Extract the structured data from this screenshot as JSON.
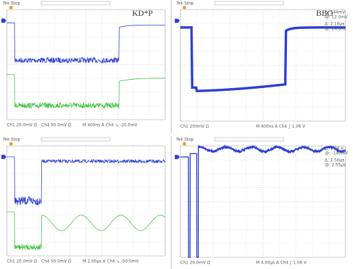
{
  "panels": [
    {
      "header": "Tek Stop",
      "label": "KD*P",
      "readouts": [],
      "footer": [
        "Ch1  20.0mV Ω",
        "Ch4  50.0mV Ω",
        "M 400ns  A  Ch4  ↘ -20.0mV"
      ]
    },
    {
      "header": "Tek Stop",
      "label": "BBO",
      "readouts": [
        "Δ: 544mV",
        "@: 12.0mV",
        "Δ: 2.10μs",
        "@: 24.8ns"
      ],
      "footer": [
        "Ch1  200mV Ω",
        "M 400ns  A  Ch4  ∫ 1.06 V"
      ]
    },
    {
      "header": "Tek Stop",
      "label": "",
      "readouts": [],
      "footer": [
        "Ch1  20.0mV Ω",
        "Ch4  50.0mV Ω",
        "M 2.00μs  A  Ch4  ↘ -50.0mV"
      ]
    },
    {
      "header": "Tek Stop",
      "label": "",
      "readouts": [
        "Δ: 9.08 V",
        "@: -140mV",
        "Δ: 2.50μs",
        "@: 2.55μs"
      ],
      "footer": [
        "Ch1  20.0mV Ω",
        "M 4.00μs  A  Ch4  ∫ 1.06 V"
      ]
    }
  ]
}
